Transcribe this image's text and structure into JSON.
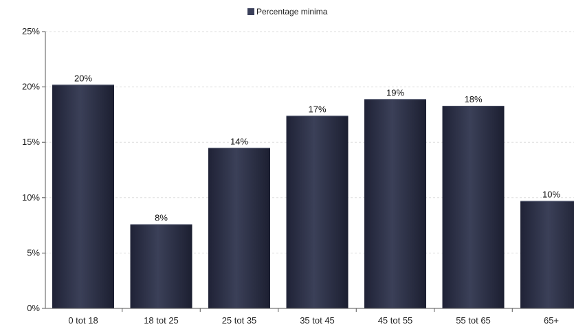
{
  "chart_data": {
    "type": "bar",
    "categories": [
      "0 tot 18",
      "18 tot 25",
      "25 tot 35",
      "35 tot 45",
      "45 tot 55",
      "55 tot 65",
      "65+"
    ],
    "series": [
      {
        "name": "Percentage minima",
        "values": [
          20.2,
          7.6,
          14.5,
          17.4,
          18.9,
          18.3,
          9.7
        ],
        "labels": [
          "20%",
          "8%",
          "14%",
          "17%",
          "19%",
          "18%",
          "10%"
        ]
      }
    ],
    "ylim": [
      0,
      25
    ],
    "y_ticks": [
      0,
      5,
      10,
      15,
      20,
      25
    ],
    "y_tick_labels": [
      "0%",
      "5%",
      "10%",
      "15%",
      "20%",
      "25%"
    ],
    "legend": {
      "position": "top-center"
    },
    "grid": true,
    "colors": {
      "bar": "#2a2e44",
      "bar_highlight": "#4a5068",
      "axis": "#555555",
      "grid": "#dddddd"
    }
  }
}
